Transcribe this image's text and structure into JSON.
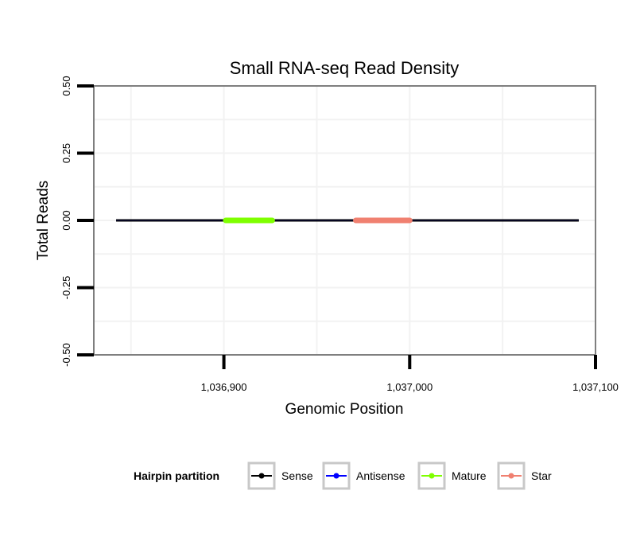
{
  "chart_data": {
    "type": "line",
    "title": "Small RNA-seq Read Density",
    "xlabel": "Genomic Position",
    "ylabel": "Total Reads",
    "xlim": [
      1036830,
      1037100
    ],
    "ylim": [
      -0.5,
      0.5
    ],
    "x_ticks": [
      1036900,
      1037000,
      1037100
    ],
    "x_tick_labels": [
      "1,036,900",
      "1,037,000",
      "1,037,100"
    ],
    "y_ticks": [
      -0.5,
      -0.25,
      0.0,
      0.25,
      0.5
    ],
    "y_tick_labels": [
      "-0.50",
      "-0.25",
      "0.00",
      "0.25",
      "0.50"
    ],
    "grid": true,
    "legend_position": "bottom",
    "legend_title": "Hairpin partition",
    "series": [
      {
        "name": "Sense",
        "color": "#000000",
        "x": [
          1036842,
          1037091
        ],
        "y": [
          0,
          0
        ]
      },
      {
        "name": "Antisense",
        "color": "#0000ff",
        "x": [
          1036842,
          1037091
        ],
        "y": [
          0,
          0
        ]
      },
      {
        "name": "Mature",
        "color": "#7fff00",
        "x": [
          1036901,
          1036926
        ],
        "y": [
          0,
          0
        ]
      },
      {
        "name": "Star",
        "color": "#f08070",
        "x": [
          1036971,
          1037000
        ],
        "y": [
          0,
          0
        ]
      }
    ]
  }
}
